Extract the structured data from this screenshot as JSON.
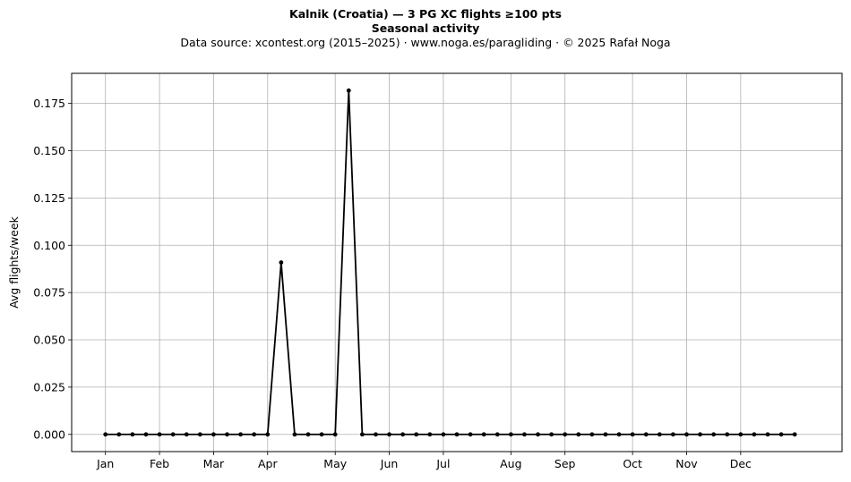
{
  "chart_data": {
    "type": "line",
    "title": "Kalnik (Croatia)  —  3 PG XC flights ≥100 pts",
    "subtitle": "Seasonal activity",
    "source_note": "Data source: xcontest.org (2015–2025)  ·  www.noga.es/paragliding  ·  © 2025 Rafał Noga",
    "xlabel": "",
    "ylabel": "Avg flights/week",
    "x_unit": "week of year",
    "xlim": [
      -2.5,
      54.5
    ],
    "ylim": [
      -0.00909,
      0.19091
    ],
    "yticks": [
      0.0,
      0.025,
      0.05,
      0.075,
      0.1,
      0.125,
      0.15,
      0.175
    ],
    "ytick_labels": [
      "0.000",
      "0.025",
      "0.050",
      "0.075",
      "0.100",
      "0.125",
      "0.150",
      "0.175"
    ],
    "month_ticks": [
      {
        "label": "Jan",
        "x": 0
      },
      {
        "label": "Feb",
        "x": 4
      },
      {
        "label": "Mar",
        "x": 8
      },
      {
        "label": "Apr",
        "x": 12
      },
      {
        "label": "May",
        "x": 17
      },
      {
        "label": "Jun",
        "x": 21
      },
      {
        "label": "Jul",
        "x": 25
      },
      {
        "label": "Aug",
        "x": 30
      },
      {
        "label": "Sep",
        "x": 34
      },
      {
        "label": "Oct",
        "x": 39
      },
      {
        "label": "Nov",
        "x": 43
      },
      {
        "label": "Dec",
        "x": 47
      }
    ],
    "grid": true,
    "series": [
      {
        "color": "#000000",
        "x": [
          0,
          1,
          2,
          3,
          4,
          5,
          6,
          7,
          8,
          9,
          10,
          11,
          12,
          13,
          14,
          15,
          16,
          17,
          18,
          19,
          20,
          21,
          22,
          23,
          24,
          25,
          26,
          27,
          28,
          29,
          30,
          31,
          32,
          33,
          34,
          35,
          36,
          37,
          38,
          39,
          40,
          41,
          42,
          43,
          44,
          45,
          46,
          47,
          48,
          49,
          50,
          51
        ],
        "values": [
          0,
          0,
          0,
          0,
          0,
          0,
          0,
          0,
          0,
          0,
          0,
          0,
          0,
          0.0909,
          0,
          0,
          0,
          0,
          0.1818,
          0,
          0,
          0,
          0,
          0,
          0,
          0,
          0,
          0,
          0,
          0,
          0,
          0,
          0,
          0,
          0,
          0,
          0,
          0,
          0,
          0,
          0,
          0,
          0,
          0,
          0,
          0,
          0,
          0,
          0,
          0,
          0,
          0
        ]
      }
    ]
  }
}
